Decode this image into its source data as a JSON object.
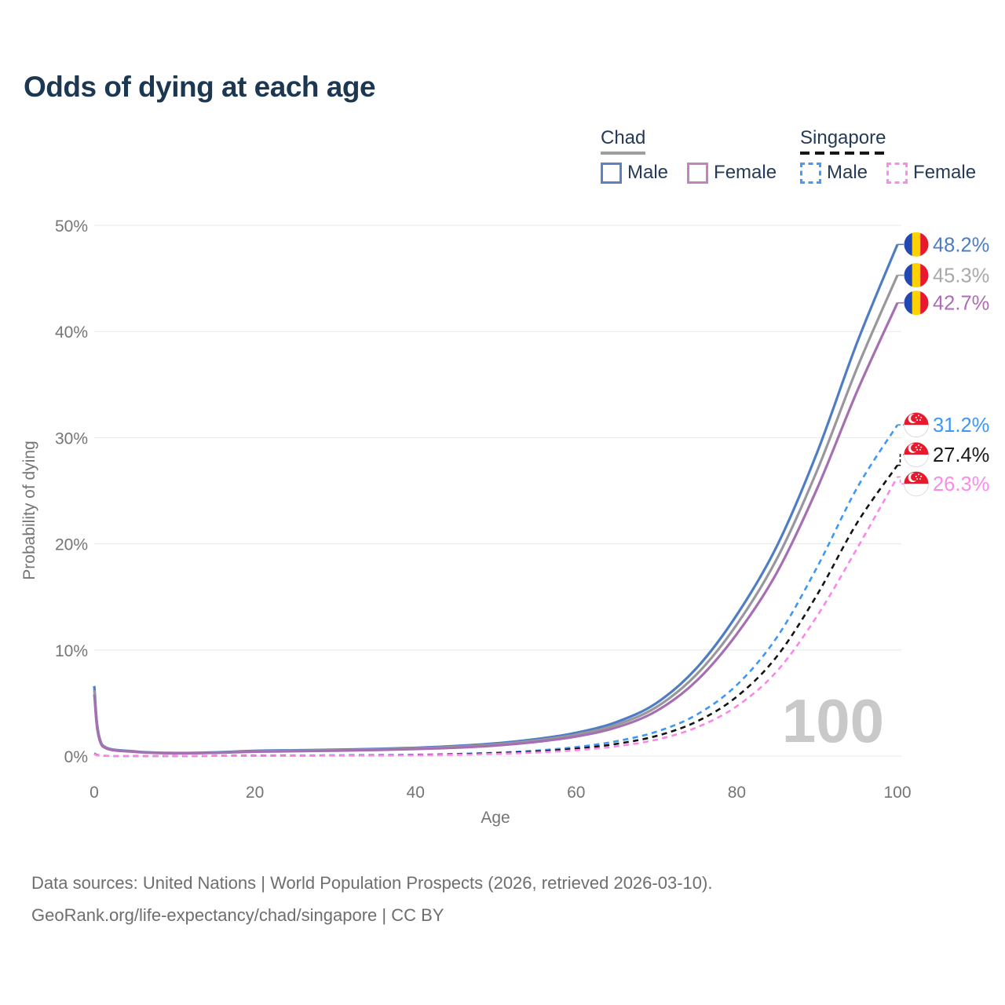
{
  "title": "Odds of dying at each age",
  "legend": {
    "groups": [
      {
        "label": "Chad",
        "underline": "solid",
        "underline_color": "#9e9e9e",
        "items": [
          {
            "label": "Male",
            "color": "#4e7dc5",
            "dash": false
          },
          {
            "label": "Female",
            "color": "#c383bf",
            "dash": false
          }
        ]
      },
      {
        "label": "Singapore",
        "underline": "dashed",
        "underline_color": "#161616",
        "items": [
          {
            "label": "Male",
            "color": "#4a9af5",
            "dash": true
          },
          {
            "label": "Female",
            "color": "#fb8bea",
            "dash": true
          }
        ]
      }
    ]
  },
  "chart_data": {
    "type": "line",
    "title": "Odds of dying at each age",
    "xlabel": "Age",
    "ylabel": "Probability of dying",
    "x_ticks": [
      0,
      20,
      40,
      60,
      80,
      100
    ],
    "y_tick_labels": [
      "0%",
      "10%",
      "20%",
      "30%",
      "40%",
      "50%"
    ],
    "y_ticks_pct": [
      0,
      10,
      20,
      30,
      40,
      50
    ],
    "xlim": [
      0,
      100
    ],
    "ylim_pct": [
      0,
      50
    ],
    "grid": "horizontal-only",
    "watermark": "100",
    "ages": [
      0,
      1,
      5,
      10,
      15,
      20,
      25,
      30,
      35,
      40,
      45,
      50,
      55,
      60,
      65,
      70,
      75,
      80,
      85,
      90,
      95,
      100
    ],
    "series": [
      {
        "id": "chad-male",
        "country": "Chad",
        "sex": "Male",
        "color": "#4e7dc5",
        "line": "solid",
        "flag": "chad",
        "end_label": "48.2%",
        "end_value_pct": 48.2,
        "label_color": "#4d7cc3",
        "label_y_pct": 48.2,
        "values_pct": [
          6.6,
          1.05,
          0.45,
          0.3,
          0.35,
          0.5,
          0.55,
          0.6,
          0.68,
          0.78,
          0.95,
          1.2,
          1.6,
          2.2,
          3.2,
          5.0,
          8.3,
          13.3,
          19.8,
          28.6,
          39.0,
          48.2
        ]
      },
      {
        "id": "chad-both",
        "country": "Chad",
        "sex": "Both sexes",
        "color": "#98989c",
        "line": "solid",
        "flag": "chad",
        "end_label": "45.3%",
        "end_value_pct": 45.3,
        "label_color": "#a9a9a9",
        "label_y_pct": 45.3,
        "values_pct": [
          6.2,
          1.0,
          0.42,
          0.28,
          0.32,
          0.45,
          0.5,
          0.55,
          0.62,
          0.72,
          0.87,
          1.1,
          1.47,
          2.02,
          2.95,
          4.62,
          7.7,
          12.4,
          18.6,
          26.9,
          36.6,
          45.3
        ]
      },
      {
        "id": "chad-female",
        "country": "Chad",
        "sex": "Female",
        "color": "#a56fb2",
        "line": "solid",
        "flag": "chad",
        "end_label": "42.7%",
        "end_value_pct": 42.7,
        "label_color": "#ad6cb5",
        "label_y_pct": 42.7,
        "values_pct": [
          5.8,
          0.95,
          0.4,
          0.26,
          0.3,
          0.41,
          0.46,
          0.51,
          0.57,
          0.66,
          0.79,
          1.0,
          1.34,
          1.85,
          2.7,
          4.25,
          7.1,
          11.5,
          17.3,
          25.2,
          34.4,
          42.7
        ]
      },
      {
        "id": "sg-male",
        "country": "Singapore",
        "sex": "Male",
        "color": "#3d97f7",
        "line": "dashed",
        "flag": "singapore",
        "end_label": "31.2%",
        "end_value_pct": 31.2,
        "label_color": "#3d97f7",
        "label_y_pct": 31.2,
        "values_pct": [
          0.25,
          0.03,
          0.01,
          0.01,
          0.03,
          0.05,
          0.06,
          0.07,
          0.09,
          0.13,
          0.2,
          0.32,
          0.52,
          0.85,
          1.4,
          2.3,
          3.9,
          6.7,
          11.2,
          17.8,
          25.3,
          31.2
        ]
      },
      {
        "id": "sg-both",
        "country": "Singapore",
        "sex": "Both sexes",
        "color": "#141414",
        "line": "dashed",
        "flag": "singapore",
        "end_label": "27.4%",
        "end_value_pct": 27.4,
        "label_color": "#1a1a1a",
        "label_y_pct": 28.4,
        "values_pct": [
          0.22,
          0.03,
          0.01,
          0.01,
          0.02,
          0.04,
          0.05,
          0.06,
          0.08,
          0.11,
          0.17,
          0.27,
          0.43,
          0.7,
          1.15,
          1.9,
          3.25,
          5.6,
          9.4,
          15.2,
          22.0,
          27.4
        ]
      },
      {
        "id": "sg-female",
        "country": "Singapore",
        "sex": "Female",
        "color": "#fc85e9",
        "line": "dashed",
        "flag": "singapore",
        "end_label": "26.3%",
        "end_value_pct": 26.3,
        "label_color": "#fb8bea",
        "label_y_pct": 25.65,
        "values_pct": [
          0.2,
          0.02,
          0.01,
          0.01,
          0.02,
          0.03,
          0.04,
          0.05,
          0.06,
          0.09,
          0.13,
          0.21,
          0.34,
          0.56,
          0.92,
          1.55,
          2.7,
          4.7,
          8.0,
          13.2,
          19.6,
          26.3
        ]
      }
    ],
    "flag_colors": {
      "chad": {
        "blue": "#2348b1",
        "yellow": "#fed100",
        "red": "#e8192c"
      },
      "singapore": {
        "red": "#e8192c",
        "white": "#ffffff"
      }
    }
  },
  "watermark": "100",
  "footer": {
    "line1": "Data sources: United Nations | World Population Prospects (2026, retrieved 2026-03-10).",
    "line2": "GeoRank.org/life-expectancy/chad/singapore | CC BY"
  }
}
